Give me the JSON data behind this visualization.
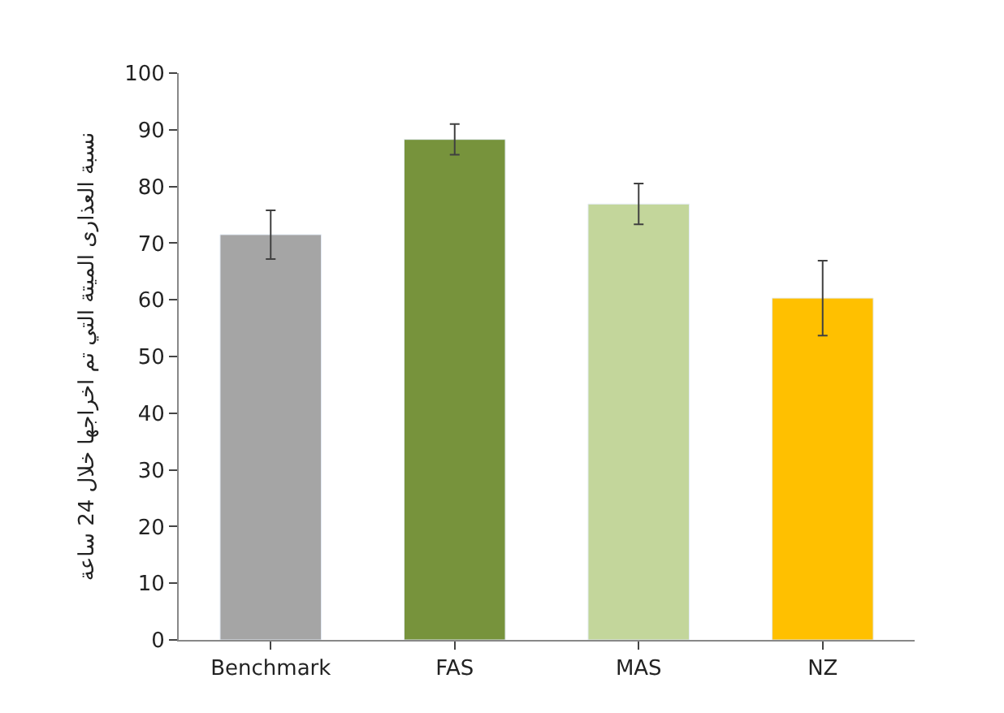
{
  "chart_data": {
    "type": "bar",
    "ylabel": "نسبة العذارى الميتة التي تم اخراجها خلال 24 ساعة",
    "categories": [
      "Benchmark",
      "FAS",
      "MAS",
      "NZ"
    ],
    "values": [
      71.5,
      88.3,
      76.9,
      60.3
    ],
    "errors": [
      4.3,
      2.7,
      3.6,
      6.6
    ],
    "colors": [
      "#a5a5a5",
      "#77933c",
      "#c3d69b",
      "#ffc000"
    ],
    "ylim": [
      0,
      100
    ],
    "yticks": [
      0,
      10,
      20,
      30,
      40,
      50,
      60,
      70,
      80,
      90,
      100
    ]
  }
}
